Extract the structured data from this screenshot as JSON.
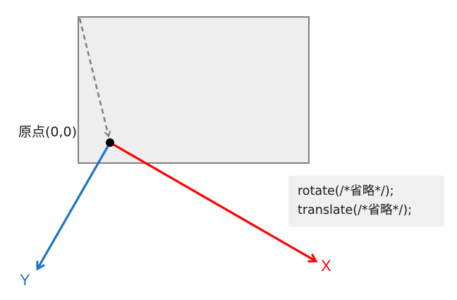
{
  "diagram": {
    "origin_label": "原点(0,0)",
    "code_lines": [
      "rotate(/*省略*/);",
      "translate(/*省略*/);"
    ],
    "x_axis_label": "X",
    "y_axis_label": "Y",
    "colors": {
      "rectangle_fill": "#eeeeee",
      "rectangle_stroke": "#7f7f7f",
      "x_axis": "#ff0000",
      "y_axis": "#1a74c6",
      "dashed_arrow": "#7f7f7f",
      "origin_dot": "#000000",
      "code_box_bg": "#f0f0f0"
    }
  }
}
